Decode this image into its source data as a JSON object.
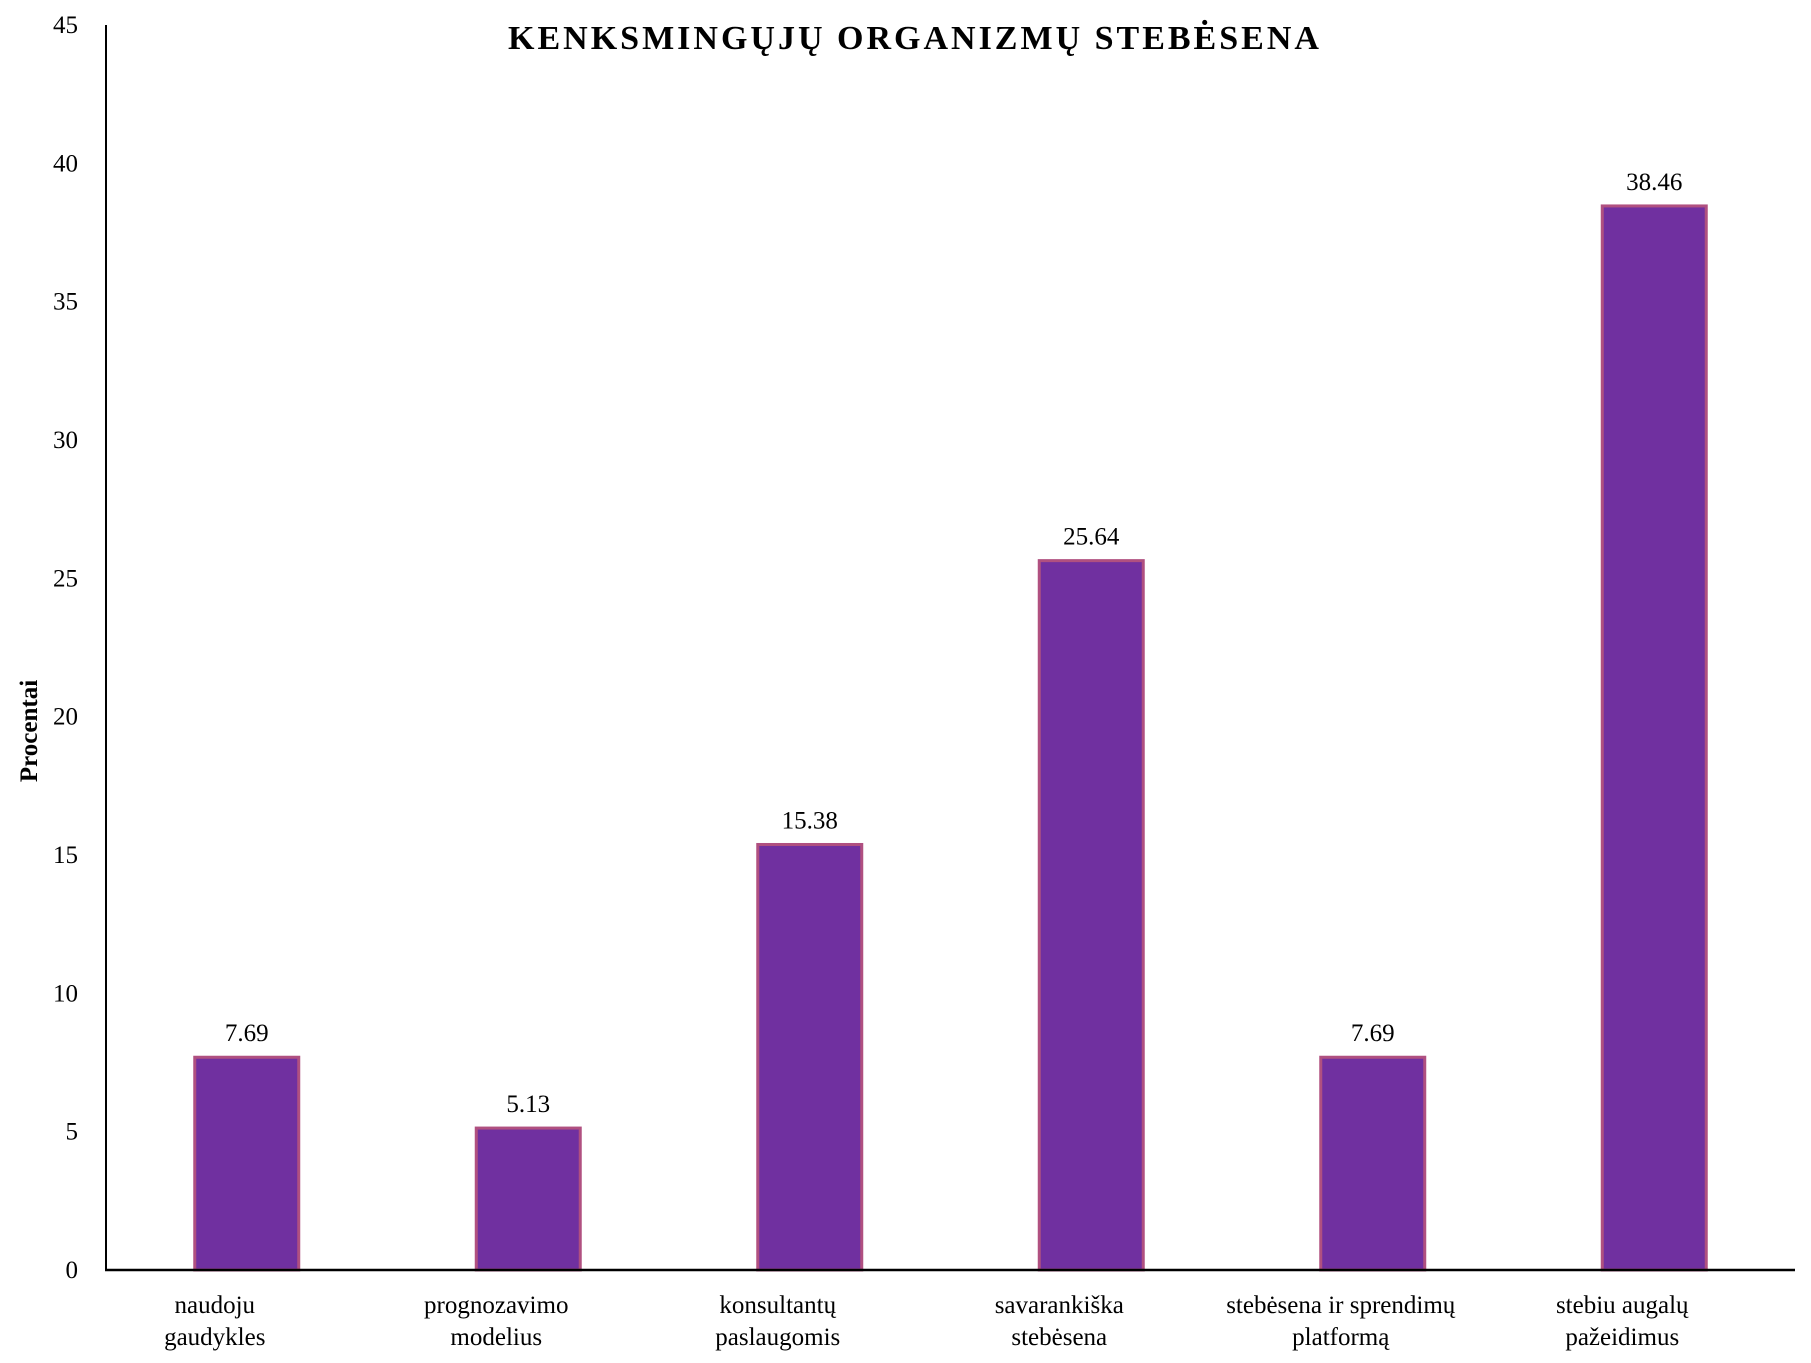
{
  "chart_data": {
    "type": "bar",
    "title": "KENKSMINGŲJŲ ORGANIZMŲ STEBĖSENA",
    "xlabel": "",
    "ylabel": "Procentai",
    "ylim": [
      0,
      45
    ],
    "yticks": [
      0,
      5,
      10,
      15,
      20,
      25,
      30,
      35,
      40,
      45
    ],
    "grid": false,
    "legend": "none",
    "categories": [
      [
        "naudoju",
        "gaudykles"
      ],
      [
        "prognozavimo",
        "modelius"
      ],
      [
        "konsultantų",
        "paslaugomis"
      ],
      [
        "savarankiška",
        "stebėsena"
      ],
      [
        "stebėsena ir sprendimų",
        "platformą"
      ],
      [
        "stebiu augalų",
        "pažeidimus"
      ]
    ],
    "values": [
      7.69,
      5.13,
      15.38,
      25.64,
      7.69,
      38.46
    ],
    "value_labels": [
      "7.69",
      "5.13",
      "15.38",
      "25.64",
      "7.69",
      "38.46"
    ],
    "colors": {
      "bar": "#7030a0",
      "bar_border": "#b05080",
      "axis": "#000000"
    }
  }
}
